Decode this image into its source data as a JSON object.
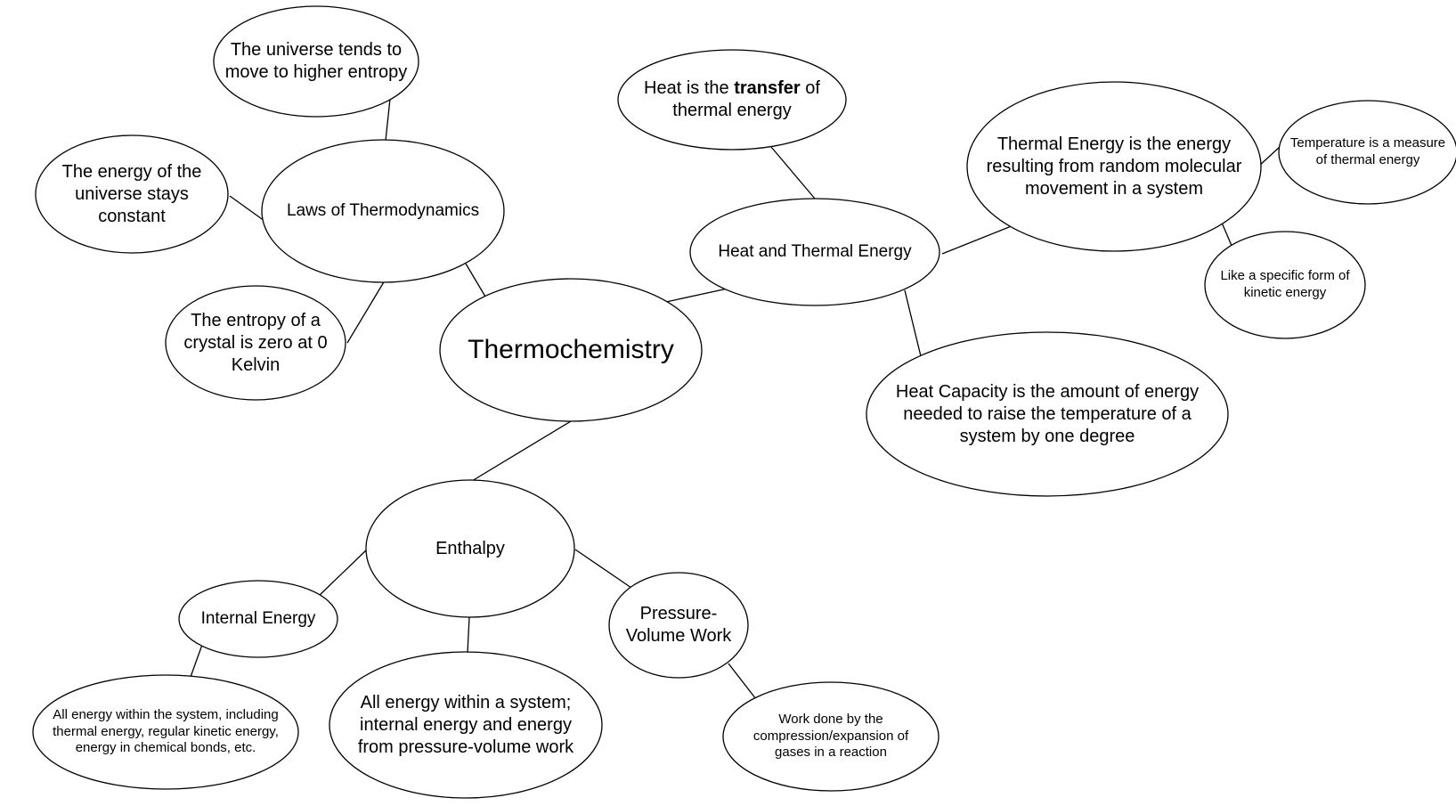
{
  "nodes": {
    "thermochemistry": "Thermochemistry",
    "laws": "Laws of Thermodynamics",
    "law_entropy_universe": "The universe tends to move to higher entropy",
    "law_energy_constant": "The energy of the universe stays constant",
    "law_crystal_zero": "The entropy of a crystal is zero at 0 Kelvin",
    "heat_thermal": "Heat and Thermal Energy",
    "heat_transfer": {
      "before": "Heat is the ",
      "bold": "transfer",
      "after": " of thermal energy"
    },
    "thermal_energy_def": "Thermal Energy is the energy resulting from random molecular movement in a system",
    "temperature_measure": "Temperature is a measure of thermal energy",
    "kinetic_form": "Like a specific form of kinetic energy",
    "heat_capacity": "Heat Capacity is the amount of energy needed to raise the temperature of a system by one degree",
    "enthalpy": "Enthalpy",
    "internal_energy": "Internal Energy",
    "internal_energy_def": "All energy within the system, including thermal energy, regular kinetic energy, energy in chemical bonds, etc.",
    "enthalpy_def": "All energy within a system; internal energy and energy from pressure-volume work",
    "pv_work": "Pressure-Volume Work",
    "pv_work_def": "Work done by the compression/expansion of gases in a reaction"
  }
}
